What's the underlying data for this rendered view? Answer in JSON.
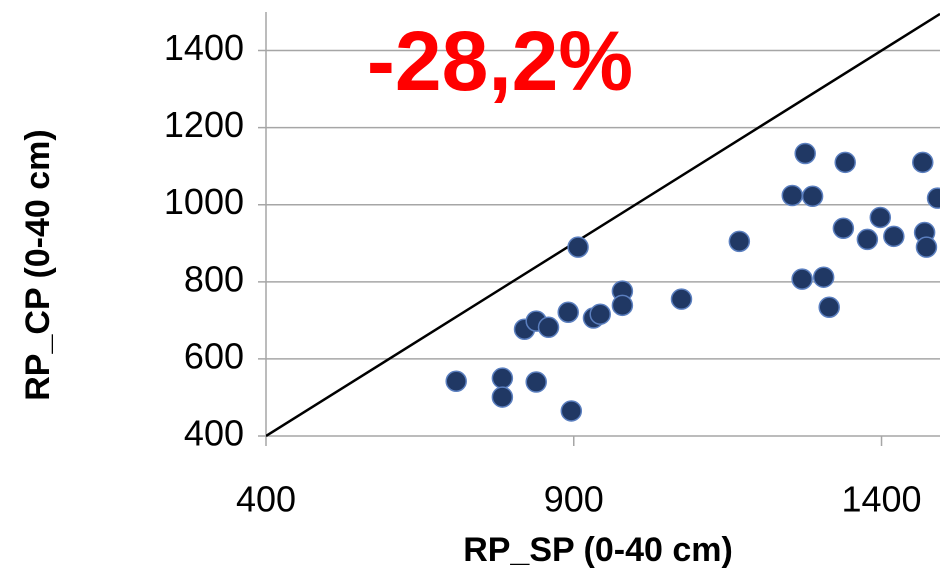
{
  "chart_data": {
    "type": "scatter",
    "annotation": "-28,2%",
    "x_label": "RP_SP (0-40 cm)",
    "y_label": "RP_CP (0-40 cm)",
    "xlim": [
      400,
      1495
    ],
    "ylim": [
      400,
      1500
    ],
    "xticks": [
      400,
      900,
      1400
    ],
    "yticks": [
      400,
      600,
      800,
      1000,
      1200,
      1400
    ],
    "grid": true,
    "identity_line": true,
    "series": [
      {
        "color": "#203864",
        "x": [
          709,
          784,
          784,
          839,
          820,
          839,
          859,
          891,
          896,
          907,
          932,
          943,
          979,
          979,
          1075,
          1169,
          1255,
          1276,
          1288,
          1271,
          1306,
          1315,
          1341,
          1338,
          1377,
          1398,
          1420,
          1467,
          1470,
          1473,
          1491
        ],
        "values": [
          542,
          550,
          501,
          540,
          677,
          698,
          682,
          721,
          465,
          890,
          706,
          716,
          776,
          739,
          755,
          905,
          1024,
          1133,
          1022,
          807,
          812,
          734,
          1110,
          939,
          910,
          967,
          918,
          1110,
          928,
          890,
          1017
        ]
      }
    ]
  }
}
